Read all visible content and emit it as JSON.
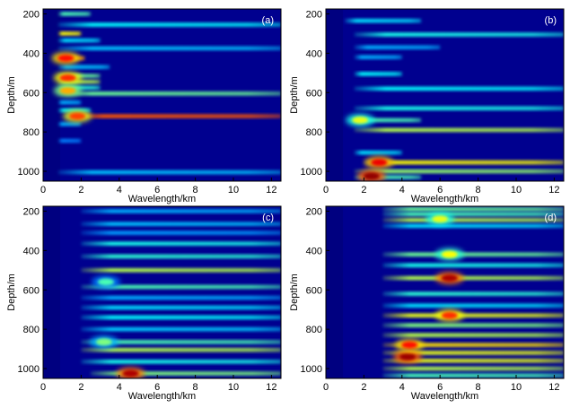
{
  "chart_data": [
    {
      "type": "heatmap",
      "panel_label": "(a)",
      "xlabel": "Wavelength/km",
      "ylabel": "Depth/m",
      "xlim": [
        0,
        12.5
      ],
      "ylim": [
        1050,
        175
      ],
      "xticks": [
        "0",
        "2",
        "4",
        "6",
        "8",
        "10",
        "12"
      ],
      "yticks": [
        "200",
        "400",
        "600",
        "800",
        "1000"
      ],
      "colormap": "jet",
      "bands": [
        {
          "depth": 200,
          "w0": 0.8,
          "w1": 2.5,
          "level": 0.45
        },
        {
          "depth": 255,
          "w0": 0.8,
          "w1": 12.5,
          "level": 0.38
        },
        {
          "depth": 300,
          "w0": 0.8,
          "w1": 2.0,
          "level": 0.62
        },
        {
          "depth": 335,
          "w0": 0.8,
          "w1": 3.0,
          "level": 0.35
        },
        {
          "depth": 375,
          "w0": 0.8,
          "w1": 12.5,
          "level": 0.32
        },
        {
          "depth": 425,
          "w0": 0.8,
          "w1": 2.2,
          "level": 0.72
        },
        {
          "depth": 470,
          "w0": 0.8,
          "w1": 3.5,
          "level": 0.32
        },
        {
          "depth": 515,
          "w0": 0.8,
          "w1": 3.0,
          "level": 0.48
        },
        {
          "depth": 545,
          "w0": 0.8,
          "w1": 3.0,
          "level": 0.55
        },
        {
          "depth": 575,
          "w0": 0.8,
          "w1": 3.0,
          "level": 0.42
        },
        {
          "depth": 605,
          "w0": 0.8,
          "w1": 12.5,
          "level": 0.48
        },
        {
          "depth": 650,
          "w0": 0.8,
          "w1": 2.0,
          "level": 0.3
        },
        {
          "depth": 690,
          "w0": 0.8,
          "w1": 2.5,
          "level": 0.38
        },
        {
          "depth": 720,
          "w0": 1.5,
          "w1": 12.5,
          "level": 0.78
        },
        {
          "depth": 760,
          "w0": 0.8,
          "w1": 2.0,
          "level": 0.3
        },
        {
          "depth": 845,
          "w0": 0.8,
          "w1": 2.0,
          "level": 0.25
        },
        {
          "depth": 1005,
          "w0": 0.8,
          "w1": 12.5,
          "level": 0.32
        }
      ],
      "blobs": [
        {
          "wavelength": 1.2,
          "depth": 425,
          "level": 0.85
        },
        {
          "wavelength": 1.3,
          "depth": 525,
          "level": 0.82
        },
        {
          "wavelength": 1.3,
          "depth": 590,
          "level": 0.7
        },
        {
          "wavelength": 1.8,
          "depth": 720,
          "level": 0.8
        }
      ]
    },
    {
      "type": "heatmap",
      "panel_label": "(b)",
      "xlabel": "Wavelength/km",
      "ylabel": "Depth/m",
      "xlim": [
        0,
        12.5
      ],
      "ylim": [
        1050,
        175
      ],
      "xticks": [
        "0",
        "2",
        "4",
        "6",
        "8",
        "10",
        "12"
      ],
      "yticks": [
        "200",
        "400",
        "600",
        "800",
        "1000"
      ],
      "colormap": "jet",
      "bands": [
        {
          "depth": 235,
          "w0": 1.0,
          "w1": 5.0,
          "level": 0.35
        },
        {
          "depth": 305,
          "w0": 1.5,
          "w1": 12.5,
          "level": 0.4
        },
        {
          "depth": 370,
          "w0": 1.5,
          "w1": 6.0,
          "level": 0.3
        },
        {
          "depth": 420,
          "w0": 1.5,
          "w1": 4.0,
          "level": 0.3
        },
        {
          "depth": 505,
          "w0": 1.5,
          "w1": 4.0,
          "level": 0.38
        },
        {
          "depth": 580,
          "w0": 1.5,
          "w1": 12.5,
          "level": 0.38
        },
        {
          "depth": 680,
          "w0": 1.5,
          "w1": 12.5,
          "level": 0.4
        },
        {
          "depth": 740,
          "w0": 1.5,
          "w1": 5.0,
          "level": 0.45
        },
        {
          "depth": 790,
          "w0": 1.5,
          "w1": 12.5,
          "level": 0.55
        },
        {
          "depth": 905,
          "w0": 1.5,
          "w1": 4.0,
          "level": 0.35
        },
        {
          "depth": 955,
          "w0": 2.0,
          "w1": 12.5,
          "level": 0.62
        },
        {
          "depth": 1000,
          "w0": 1.5,
          "w1": 12.5,
          "level": 0.52
        },
        {
          "depth": 1030,
          "w0": 1.5,
          "w1": 5.0,
          "level": 0.45
        }
      ],
      "blobs": [
        {
          "wavelength": 2.4,
          "depth": 1025,
          "level": 0.98
        },
        {
          "wavelength": 2.8,
          "depth": 955,
          "level": 0.88
        },
        {
          "wavelength": 1.8,
          "depth": 740,
          "level": 0.6
        }
      ]
    },
    {
      "type": "heatmap",
      "panel_label": "(c)",
      "xlabel": "Wavelength/km",
      "ylabel": "Depth/m",
      "xlim": [
        0,
        12.5
      ],
      "ylim": [
        1050,
        175
      ],
      "xticks": [
        "0",
        "2",
        "4",
        "6",
        "8",
        "10",
        "12"
      ],
      "yticks": [
        "200",
        "400",
        "600",
        "800",
        "1000"
      ],
      "colormap": "jet",
      "bands": [
        {
          "depth": 200,
          "w0": 2.0,
          "w1": 12.5,
          "level": 0.3
        },
        {
          "depth": 265,
          "w0": 2.0,
          "w1": 12.5,
          "level": 0.32
        },
        {
          "depth": 310,
          "w0": 2.0,
          "w1": 12.5,
          "level": 0.28
        },
        {
          "depth": 365,
          "w0": 2.0,
          "w1": 12.5,
          "level": 0.4
        },
        {
          "depth": 430,
          "w0": 2.0,
          "w1": 12.5,
          "level": 0.42
        },
        {
          "depth": 500,
          "w0": 2.0,
          "w1": 12.5,
          "level": 0.55
        },
        {
          "depth": 585,
          "w0": 2.0,
          "w1": 12.5,
          "level": 0.45
        },
        {
          "depth": 640,
          "w0": 2.0,
          "w1": 12.5,
          "level": 0.3
        },
        {
          "depth": 690,
          "w0": 2.0,
          "w1": 12.5,
          "level": 0.35
        },
        {
          "depth": 740,
          "w0": 2.0,
          "w1": 12.5,
          "level": 0.38
        },
        {
          "depth": 800,
          "w0": 2.0,
          "w1": 12.5,
          "level": 0.33
        },
        {
          "depth": 865,
          "w0": 2.0,
          "w1": 12.5,
          "level": 0.45
        },
        {
          "depth": 905,
          "w0": 2.0,
          "w1": 12.5,
          "level": 0.55
        },
        {
          "depth": 965,
          "w0": 2.0,
          "w1": 12.5,
          "level": 0.4
        },
        {
          "depth": 1025,
          "w0": 2.5,
          "w1": 12.5,
          "level": 0.5
        }
      ],
      "blobs": [
        {
          "wavelength": 4.6,
          "depth": 1025,
          "level": 0.95
        },
        {
          "wavelength": 3.3,
          "depth": 560,
          "level": 0.45
        },
        {
          "wavelength": 3.2,
          "depth": 865,
          "level": 0.5
        }
      ]
    },
    {
      "type": "heatmap",
      "panel_label": "(d)",
      "xlabel": "Wavelength/km",
      "ylabel": "Depth/m",
      "xlim": [
        0,
        12.5
      ],
      "ylim": [
        1050,
        175
      ],
      "xticks": [
        "0",
        "2",
        "4",
        "6",
        "8",
        "10",
        "12"
      ],
      "yticks": [
        "200",
        "400",
        "600",
        "800",
        "1000"
      ],
      "colormap": "jet",
      "bands": [
        {
          "depth": 190,
          "w0": 3.0,
          "w1": 12.5,
          "level": 0.48
        },
        {
          "depth": 215,
          "w0": 3.0,
          "w1": 12.5,
          "level": 0.45
        },
        {
          "depth": 245,
          "w0": 3.0,
          "w1": 12.5,
          "level": 0.55
        },
        {
          "depth": 275,
          "w0": 3.0,
          "w1": 12.5,
          "level": 0.35
        },
        {
          "depth": 420,
          "w0": 3.0,
          "w1": 12.5,
          "level": 0.48
        },
        {
          "depth": 475,
          "w0": 3.0,
          "w1": 12.5,
          "level": 0.4
        },
        {
          "depth": 540,
          "w0": 3.0,
          "w1": 12.5,
          "level": 0.55
        },
        {
          "depth": 620,
          "w0": 3.0,
          "w1": 12.5,
          "level": 0.42
        },
        {
          "depth": 680,
          "w0": 3.0,
          "w1": 12.5,
          "level": 0.35
        },
        {
          "depth": 730,
          "w0": 3.0,
          "w1": 12.5,
          "level": 0.6
        },
        {
          "depth": 780,
          "w0": 3.0,
          "w1": 12.5,
          "level": 0.5
        },
        {
          "depth": 830,
          "w0": 3.0,
          "w1": 12.5,
          "level": 0.55
        },
        {
          "depth": 880,
          "w0": 3.0,
          "w1": 12.5,
          "level": 0.65
        },
        {
          "depth": 920,
          "w0": 3.0,
          "w1": 12.5,
          "level": 0.6
        },
        {
          "depth": 960,
          "w0": 3.0,
          "w1": 12.5,
          "level": 0.6
        },
        {
          "depth": 1000,
          "w0": 3.0,
          "w1": 12.5,
          "level": 0.55
        },
        {
          "depth": 1035,
          "w0": 3.0,
          "w1": 12.5,
          "level": 0.45
        }
      ],
      "blobs": [
        {
          "wavelength": 6.5,
          "depth": 540,
          "level": 0.95
        },
        {
          "wavelength": 4.3,
          "depth": 940,
          "level": 0.97
        },
        {
          "wavelength": 4.4,
          "depth": 880,
          "level": 0.85
        },
        {
          "wavelength": 6.5,
          "depth": 730,
          "level": 0.82
        },
        {
          "wavelength": 6.0,
          "depth": 240,
          "level": 0.6
        },
        {
          "wavelength": 6.5,
          "depth": 420,
          "level": 0.62
        }
      ]
    }
  ]
}
